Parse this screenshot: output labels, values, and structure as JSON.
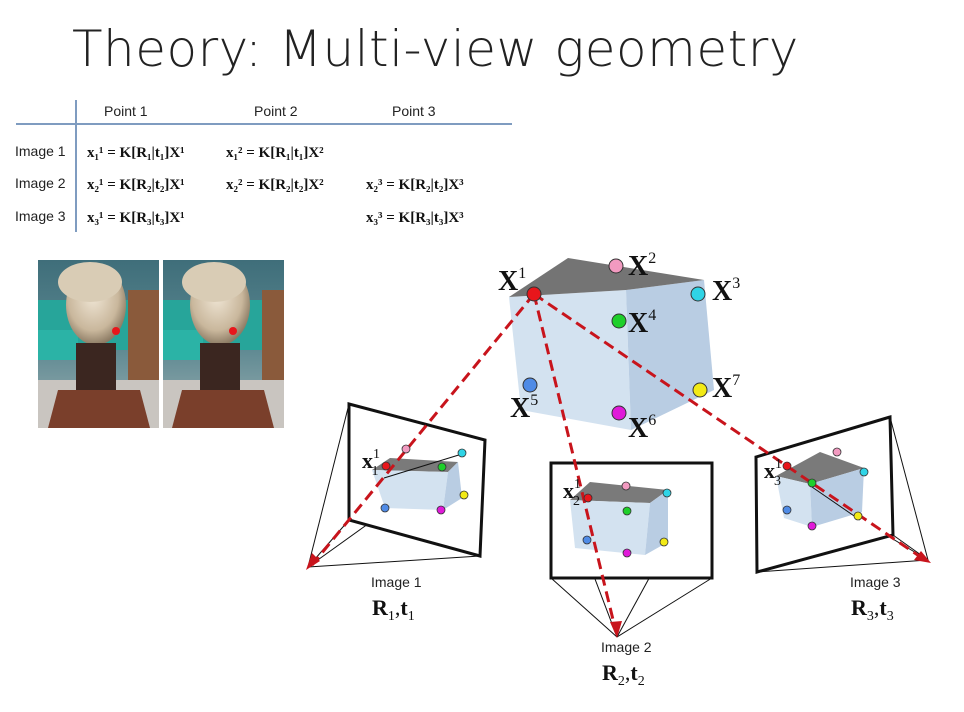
{
  "title": "Theory: Multi-view geometry",
  "table": {
    "columns": [
      "Point 1",
      "Point 2",
      "Point 3"
    ],
    "rows": [
      {
        "label": "Image 1",
        "cells": [
          "x₁¹ = K[R₁|t₁]X¹",
          "x₁² = K[R₁|t₁]X²",
          ""
        ]
      },
      {
        "label": "Image 2",
        "cells": [
          "x₂¹ = K[R₂|t₂]X¹",
          "x₂² = K[R₂|t₂]X²",
          "x₂³ = K[R₂|t₂]X³"
        ]
      },
      {
        "label": "Image 3",
        "cells": [
          "x₃¹ = K[R₃|t₃]X¹",
          "",
          "x₃³ = K[R₃|t₃]X³"
        ]
      }
    ]
  },
  "points3d": [
    {
      "label": "X",
      "index": "1",
      "color": "#e8161b"
    },
    {
      "label": "X",
      "index": "2",
      "color": "#f29ac0"
    },
    {
      "label": "X",
      "index": "3",
      "color": "#2fd4e6"
    },
    {
      "label": "X",
      "index": "4",
      "color": "#1ecf2a"
    },
    {
      "label": "X",
      "index": "5",
      "color": "#4f8be6"
    },
    {
      "label": "X",
      "index": "6",
      "color": "#e01ad9"
    },
    {
      "label": "X",
      "index": "7",
      "color": "#f2ea16"
    }
  ],
  "cameras": [
    {
      "image_label": "Image 1",
      "pose": {
        "R": "R",
        "t": "t",
        "sub": "1"
      },
      "proj": {
        "x": "x",
        "sub": "1",
        "sup": "1"
      }
    },
    {
      "image_label": "Image 2",
      "pose": {
        "R": "R",
        "t": "t",
        "sub": "2"
      },
      "proj": {
        "x": "x",
        "sub": "2",
        "sup": "1"
      }
    },
    {
      "image_label": "Image 3",
      "pose": {
        "R": "R",
        "t": "t",
        "sub": "3"
      },
      "proj": {
        "x": "x",
        "sub": "3",
        "sup": "1"
      }
    }
  ],
  "colors": {
    "ray": "#c8141c",
    "cube_front": "#d3e2f0",
    "cube_side": "#b9cde3",
    "cube_top": "#747474"
  }
}
